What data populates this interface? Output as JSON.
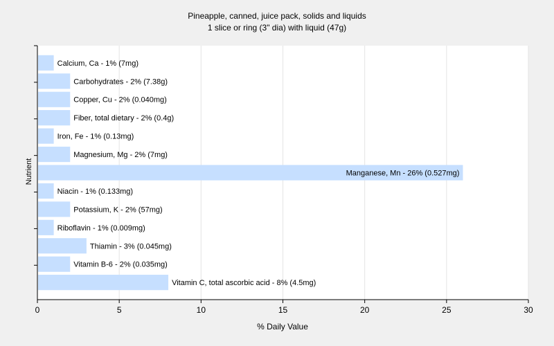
{
  "chart_data": {
    "type": "bar",
    "orientation": "horizontal",
    "title": "Pineapple, canned, juice pack, solids and liquids",
    "subtitle": "1 slice or ring (3\" dia) with liquid (47g)",
    "xlabel": "% Daily Value",
    "ylabel": "Nutrient",
    "xlim": [
      0,
      30
    ],
    "xticks": [
      0,
      5,
      10,
      15,
      20,
      25,
      30
    ],
    "grid": true,
    "bar_color": "#c6dfff",
    "categories": [
      "Calcium, Ca",
      "Carbohydrates",
      "Copper, Cu",
      "Fiber, total dietary",
      "Iron, Fe",
      "Magnesium, Mg",
      "Manganese, Mn",
      "Niacin",
      "Potassium, K",
      "Riboflavin",
      "Thiamin",
      "Vitamin B-6",
      "Vitamin C, total ascorbic acid"
    ],
    "values": [
      1,
      2,
      2,
      2,
      1,
      2,
      26,
      1,
      2,
      1,
      3,
      2,
      8
    ],
    "labels": [
      "Calcium, Ca - 1% (7mg)",
      "Carbohydrates - 2% (7.38g)",
      "Copper, Cu - 2% (0.040mg)",
      "Fiber, total dietary - 2% (0.4g)",
      "Iron, Fe - 1% (0.13mg)",
      "Magnesium, Mg - 2% (7mg)",
      "Manganese, Mn - 26% (0.527mg)",
      "Niacin - 1% (0.133mg)",
      "Potassium, K - 2% (57mg)",
      "Riboflavin - 1% (0.009mg)",
      "Thiamin - 3% (0.045mg)",
      "Vitamin B-6 - 2% (0.035mg)",
      "Vitamin C, total ascorbic acid - 8% (4.5mg)"
    ]
  }
}
